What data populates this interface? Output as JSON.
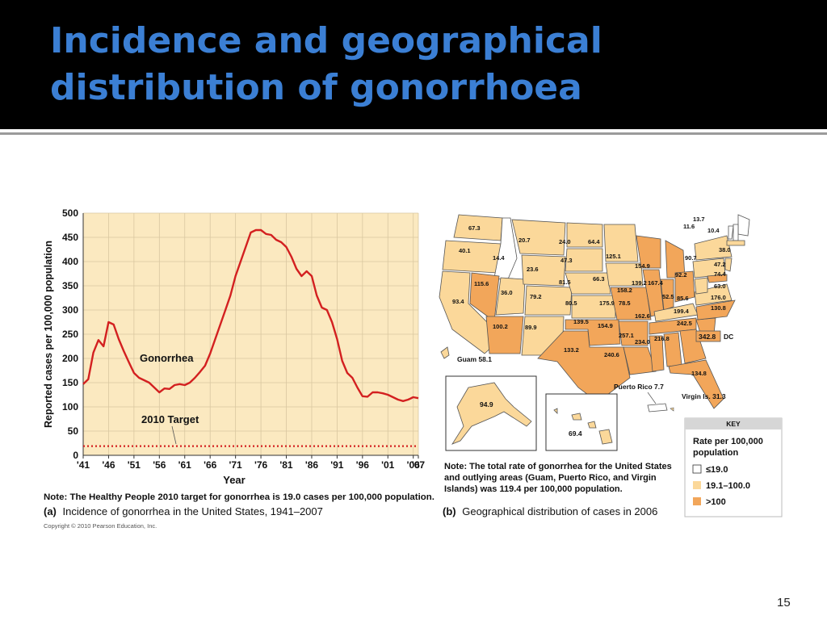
{
  "slide": {
    "title_line1": "Incidence and geographical",
    "title_line2": "distribution of gonorrhoea",
    "page_number": "15",
    "colors": {
      "title": "#3b7fd4",
      "title_bar": "#000000"
    }
  },
  "panel_a": {
    "note": "Note: The Healthy People 2010 target for gonorrhea is 19.0 cases per 100,000 population.",
    "caption_prefix": "(a)",
    "caption": "Incidence of gonorrhea in the United States, 1941–2007",
    "copyright": "Copyright © 2010 Pearson Education, Inc."
  },
  "chart_data": {
    "type": "line",
    "title": "",
    "xlabel": "Year",
    "ylabel": "Reported cases per 100,000 population",
    "ylim": [
      0,
      500
    ],
    "xlim": [
      1941,
      2007
    ],
    "yticks": [
      0,
      50,
      100,
      150,
      200,
      250,
      300,
      350,
      400,
      450,
      500
    ],
    "xtick_labels": [
      "'41",
      "'46",
      "'51",
      "'56",
      "'61",
      "'66",
      "'71",
      "'76",
      "'81",
      "'86",
      "'91",
      "'96",
      "'01",
      "'06",
      "'07"
    ],
    "xtick_years": [
      1941,
      1946,
      1951,
      1956,
      1961,
      1966,
      1971,
      1976,
      1981,
      1986,
      1991,
      1996,
      2001,
      2006,
      2007
    ],
    "grid": true,
    "background": "#fbe9c0",
    "series": [
      {
        "name": "Gonorrhea",
        "color": "#d32020",
        "x": [
          1941,
          1942,
          1943,
          1944,
          1945,
          1946,
          1947,
          1948,
          1949,
          1950,
          1951,
          1952,
          1953,
          1954,
          1955,
          1956,
          1957,
          1958,
          1959,
          1960,
          1961,
          1962,
          1963,
          1964,
          1965,
          1966,
          1967,
          1968,
          1969,
          1970,
          1971,
          1972,
          1973,
          1974,
          1975,
          1976,
          1977,
          1978,
          1979,
          1980,
          1981,
          1982,
          1983,
          1984,
          1985,
          1986,
          1987,
          1988,
          1989,
          1990,
          1991,
          1992,
          1993,
          1994,
          1995,
          1996,
          1997,
          1998,
          1999,
          2000,
          2001,
          2002,
          2003,
          2004,
          2005,
          2006,
          2007
        ],
        "values": [
          147,
          157,
          212,
          238,
          225,
          275,
          270,
          240,
          215,
          192,
          170,
          160,
          155,
          150,
          140,
          130,
          138,
          137,
          145,
          147,
          145,
          150,
          160,
          172,
          185,
          210,
          240,
          270,
          300,
          330,
          370,
          400,
          430,
          460,
          465,
          465,
          457,
          455,
          445,
          440,
          430,
          410,
          385,
          370,
          380,
          370,
          330,
          305,
          300,
          275,
          240,
          195,
          170,
          160,
          140,
          122,
          121,
          130,
          130,
          128,
          125,
          120,
          115,
          112,
          115,
          120,
          118
        ],
        "label": "Gonorrhea"
      },
      {
        "name": "2010 Target",
        "color": "#d32020",
        "style": "dotted",
        "x": [
          1941,
          2007
        ],
        "values": [
          19.0,
          19.0
        ],
        "label": "2010 Target"
      }
    ]
  },
  "panel_b": {
    "note_lines": [
      "Note: The total rate of gonorrhea for the United States",
      "and outlying areas (Guam, Puerto Rico, and Virgin",
      "Islands) was 119.4 per 100,000 population."
    ],
    "caption_prefix": "(b)",
    "caption": "Geographical distribution of cases in 2006",
    "colors": {
      "low": "#ffffff",
      "mid": "#fbd89a",
      "high": "#f2a65a",
      "state_border": "#555555"
    },
    "key": {
      "title": "KEY",
      "heading_line1": "Rate per 100,000",
      "heading_line2": "population",
      "items": [
        {
          "label": "≤19.0",
          "color": "#ffffff"
        },
        {
          "label": "19.1–100.0",
          "color": "#fbd89a"
        },
        {
          "label": ">100",
          "color": "#f2a65a"
        }
      ]
    },
    "state_values": [
      "67.3",
      "40.1",
      "14.4",
      "115.6",
      "93.4",
      "36.0",
      "20.7",
      "24.0",
      "64.4",
      "23.6",
      "47.3",
      "81.5",
      "79.2",
      "80.5",
      "100.2",
      "89.9",
      "139.5",
      "133.2",
      "154.9",
      "175.9",
      "66.3",
      "125.1",
      "154.9",
      "158.2",
      "139.2",
      "167.4",
      "78.5",
      "162.6",
      "52.5",
      "85.6",
      "92.2",
      "90.7",
      "257.1",
      "234.0",
      "216.8",
      "199.4",
      "242.5",
      "240.6",
      "11.6",
      "13.7",
      "10.4",
      "38.0",
      "47.2",
      "74.4",
      "63.0",
      "176.0",
      "130.8",
      "134.8"
    ],
    "dc_value": "342.8",
    "dc_label": "DC",
    "guam": "Guam 58.1",
    "alaska": "94.9",
    "hawaii": "69.4",
    "puerto_rico": "Puerto Rico 7.7",
    "virgin_islands": "Virgin Is. 31.3"
  }
}
